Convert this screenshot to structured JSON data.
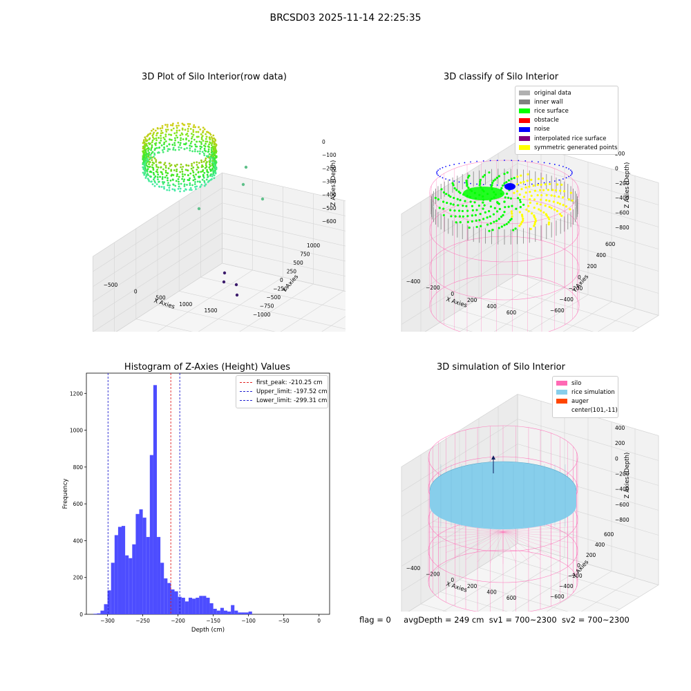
{
  "figure": {
    "suptitle": "BRCSD03 2025-11-14 22:25:35",
    "footer": {
      "flag": "flag = 0",
      "avg_depth": "avgDepth = 249 cm",
      "sv1": "sv1 = 700~2300",
      "sv2": "sv2 = 700~2300"
    }
  },
  "colors": {
    "hist_bar": "#4d4dff",
    "first_peak": "#e02020",
    "limits": "#1f1fd0",
    "silo": "#ff69b4",
    "rice_simulation": "#87ceeb",
    "auger": "#ff4500",
    "original_data": "#b0b0b0",
    "inner_wall": "#808080",
    "rice_surface": "#00ff00",
    "obstacle": "#ff0000",
    "noise": "#0000ff",
    "interpolated_rice_surface": "#800080",
    "symmetric_generated_points": "#ffff00"
  },
  "panel1": {
    "title": "3D Plot of Silo Interior(row data)",
    "xlabel": "X Axies",
    "ylabel": "Y Axies",
    "zlabel": "Z Axies (Depth)",
    "xticks": [
      "−500",
      "0",
      "500",
      "1000",
      "1500"
    ],
    "yticks": [
      "1000",
      "750",
      "500",
      "250",
      "0",
      "−250",
      "−500",
      "−750",
      "−1000"
    ],
    "zticks": [
      "0",
      "−100",
      "−200",
      "−300",
      "−400",
      "−500",
      "−600"
    ]
  },
  "panel2": {
    "title": "3D classify of Silo Interior",
    "xlabel": "X Axies",
    "ylabel": "Y Axies",
    "zlabel": "Z Axies (Depth)",
    "xticks": [
      "−400",
      "−200",
      "0",
      "200",
      "400",
      "600"
    ],
    "yticks": [
      "600",
      "400",
      "200",
      "0",
      "−200",
      "−400",
      "−600"
    ],
    "zticks": [
      "200",
      "0",
      "−200",
      "−400",
      "−600",
      "−800"
    ],
    "legend": [
      {
        "label": "original data",
        "color": "#b0b0b0"
      },
      {
        "label": "inner wall",
        "color": "#808080"
      },
      {
        "label": "rice surface",
        "color": "#00ff00"
      },
      {
        "label": "obstacle",
        "color": "#ff0000"
      },
      {
        "label": "noise",
        "color": "#0000ff"
      },
      {
        "label": "interpolated rice surface",
        "color": "#800080"
      },
      {
        "label": "symmetric generated points",
        "color": "#ffff00"
      }
    ]
  },
  "panel4": {
    "title": "3D simulation of Silo Interior",
    "xlabel": "X Axies",
    "ylabel": "Y Axies",
    "zlabel": "Z Axies (Depth)",
    "xticks": [
      "−400",
      "−200",
      "0",
      "200",
      "400",
      "600"
    ],
    "yticks": [
      "600",
      "400",
      "200",
      "0",
      "−200",
      "−400",
      "−600"
    ],
    "zticks": [
      "400",
      "200",
      "0",
      "−200",
      "−400",
      "−600",
      "−800"
    ],
    "legend": [
      {
        "label": "silo",
        "color": "#ff69b4"
      },
      {
        "label": "rice simulation",
        "color": "#87ceeb"
      },
      {
        "label": "auger",
        "color": "#ff4500"
      },
      {
        "label": "center(101,-11)",
        "color": ""
      }
    ]
  },
  "chart_data": {
    "type": "bar",
    "title": "Histogram of Z-Axies (Height) Values",
    "xlabel": "Depth (cm)",
    "ylabel": "Frequency",
    "xlim": [
      -330,
      15
    ],
    "ylim": [
      0,
      1310
    ],
    "xticks": [
      -300,
      -250,
      -200,
      -150,
      -100,
      -50,
      0
    ],
    "yticks": [
      0,
      200,
      400,
      600,
      800,
      1000,
      1200
    ],
    "bin_width": 5.0,
    "bin_start": -320,
    "counts": [
      3,
      5,
      20,
      55,
      130,
      280,
      430,
      475,
      480,
      320,
      305,
      380,
      545,
      570,
      525,
      420,
      865,
      1245,
      420,
      280,
      195,
      170,
      135,
      125,
      95,
      90,
      70,
      90,
      85,
      90,
      100,
      100,
      90,
      60,
      30,
      20,
      35,
      20,
      15,
      50,
      20,
      10,
      10,
      10,
      15
    ],
    "lines": [
      {
        "name": "first_peak",
        "label": "first_peak: -210.25 cm",
        "x": -210.25
      },
      {
        "name": "upper_limit",
        "label": "Upper_limit: -197.52 cm",
        "x": -197.52
      },
      {
        "name": "lower_limit",
        "label": "Lower_limit: -299.31 cm",
        "x": -299.31
      }
    ],
    "legend_position": "upper right",
    "grid": false
  }
}
